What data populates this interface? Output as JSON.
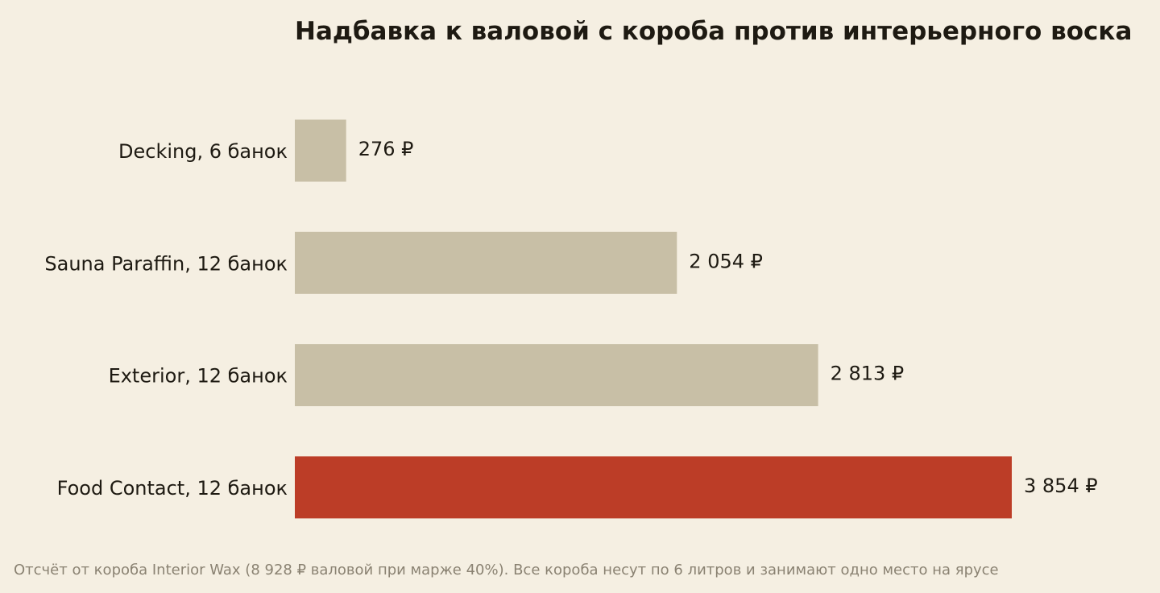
{
  "colors": {
    "background": "#f5efe2",
    "bar_default": "#c8bfa6",
    "bar_highlight": "#bc3d27",
    "text": "#1e1a12",
    "footnote": "#8a8272"
  },
  "chart_data": {
    "type": "bar",
    "orientation": "horizontal",
    "title": "Надбавка к валовой с короба против интерьерного воска",
    "categories": [
      "Decking, 6 банок",
      "Sauna Paraffin, 12 банок",
      "Exterior, 12 банок",
      "Food Contact, 12 банок"
    ],
    "values": [
      276,
      2054,
      2813,
      3854
    ],
    "value_labels": [
      "276 ₽",
      "2 054 ₽",
      "2 813 ₽",
      "3 854 ₽"
    ],
    "highlight_index": 3,
    "xlim": [
      0,
      3854
    ],
    "grid": false,
    "xlabel": "",
    "ylabel": ""
  },
  "footnote": "Отсчёт от короба Interior Wax (8 928 ₽ валовой при марже 40%). Все короба несут по 6 литров и занимают одно место на ярусе"
}
